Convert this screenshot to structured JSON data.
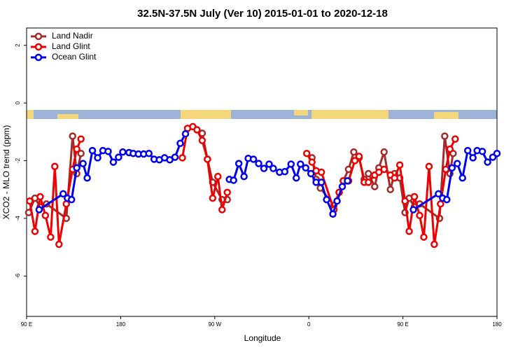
{
  "chart_data": {
    "type": "line",
    "title": "32.5N-37.5N July (Ver 10)   2015-01-01 to 2020-12-18",
    "x_label": "Longitude",
    "y_label": "XCO2 - MLO trend (ppm)",
    "xlim": [
      90,
      540
    ],
    "ylim": [
      -7.4,
      2.6
    ],
    "xticks": [
      {
        "value": 90,
        "label": "90 E"
      },
      180,
      {
        "value": 270,
        "label": "90 W"
      },
      0,
      {
        "value": 450,
        "label": "90 E"
      },
      180
    ],
    "yticks": [
      -6,
      -4,
      -2,
      0,
      2
    ],
    "legend": "top-left",
    "series": [
      {
        "name": "Land Nadir",
        "color": "#a52a2a",
        "x": [
          92,
          98,
          103,
          109,
          128,
          134,
          138,
          142,
          200,
          258,
          263,
          268,
          277,
          282,
          320,
          363,
          367,
          371,
          384,
          389,
          393,
          398,
          403,
          408,
          413,
          417,
          423,
          427,
          432,
          438,
          442,
          447,
          452,
          456,
          461,
          466,
          485,
          490,
          495,
          498
        ],
        "values": [
          -3.8,
          -3.3,
          -3.6,
          -3.5,
          -4.0,
          -1.15,
          -2.45,
          -1.75,
          null,
          -1.05,
          -1.95,
          -2.75,
          -3.35,
          -3.35,
          null,
          -1.9,
          -2.65,
          -2.95,
          -3.55,
          -3.1,
          -2.7,
          -2.3,
          -1.7,
          -1.9,
          -2.65,
          -2.45,
          -2.9,
          -2.25,
          -1.7,
          -3.0,
          -2.45,
          -2.6,
          -3.8,
          -3.3,
          -3.6,
          -3.5,
          -4.0,
          -1.15,
          -2.45,
          -1.75
        ]
      },
      {
        "name": "Land Glint",
        "color": "#ee0000",
        "x": [
          93,
          98,
          103,
          108,
          113,
          117,
          121,
          128,
          134,
          138,
          142,
          200,
          239,
          244,
          249,
          253,
          258,
          263,
          268,
          273,
          277,
          282,
          320,
          358,
          363,
          367,
          372,
          384,
          389,
          393,
          398,
          404,
          408,
          413,
          417,
          423,
          427,
          432,
          438,
          442,
          447,
          452,
          456,
          461,
          466,
          470,
          475,
          480,
          486,
          491,
          495,
          500
        ],
        "values": [
          -3.4,
          -4.45,
          -3.25,
          -3.9,
          -4.65,
          -2.2,
          -4.9,
          -3.5,
          -2.3,
          -1.6,
          -1.25,
          null,
          -1.9,
          -0.88,
          -0.82,
          -0.93,
          -1.3,
          -1.95,
          -3.3,
          -2.55,
          -3.7,
          -3.1,
          null,
          -1.75,
          -2.05,
          -2.35,
          -2.4,
          -3.7,
          -3.1,
          -2.7,
          -2.7,
          -2.0,
          -1.85,
          -2.75,
          -2.75,
          -2.5,
          -2.4,
          -2.3,
          -2.5,
          -2.6,
          -2.15,
          -3.4,
          -4.45,
          -3.25,
          -3.9,
          -4.65,
          -2.2,
          -4.9,
          -3.5,
          -2.3,
          -1.6,
          -1.25
        ]
      },
      {
        "name": "Ocean Glint",
        "color": "#0000ee",
        "x": [
          102,
          125,
          129,
          133,
          138,
          144,
          148,
          153,
          158,
          163,
          168,
          173,
          178,
          182,
          188,
          192,
          197,
          202,
          207,
          212,
          217,
          222,
          227,
          232,
          237,
          242,
          260,
          284,
          288,
          293,
          298,
          302,
          307,
          312,
          317,
          322,
          326,
          332,
          337,
          343,
          348,
          352,
          357,
          362,
          367,
          372,
          377,
          383,
          387,
          392,
          397,
          420,
          460,
          484,
          488,
          492,
          497,
          502,
          507,
          512,
          517,
          521,
          526,
          531,
          536,
          540
        ],
        "values": [
          -3.7,
          -3.15,
          -3.3,
          -3.35,
          -2.25,
          -2.1,
          -2.6,
          -1.65,
          -1.9,
          -1.65,
          -1.68,
          -2.05,
          -1.88,
          -1.7,
          -1.72,
          -1.75,
          -1.77,
          -1.77,
          -1.75,
          -1.95,
          -1.97,
          -1.9,
          -1.97,
          -1.88,
          -1.4,
          -1.07,
          null,
          -2.65,
          -2.68,
          -2.1,
          -2.55,
          -1.92,
          -1.95,
          -2.1,
          -2.27,
          -2.12,
          -2.27,
          -2.4,
          -2.38,
          -2.12,
          -2.6,
          -2.12,
          -2.25,
          -2.45,
          -2.75,
          -2.75,
          -3.35,
          -3.85,
          -3.4,
          -2.9,
          -2.7,
          null,
          -3.7,
          -3.15,
          -3.3,
          -3.35,
          -2.25,
          -2.1,
          -2.6,
          -1.65,
          -1.9,
          -1.65,
          -1.68,
          -2.05,
          -1.88,
          -1.75
        ]
      }
    ]
  }
}
